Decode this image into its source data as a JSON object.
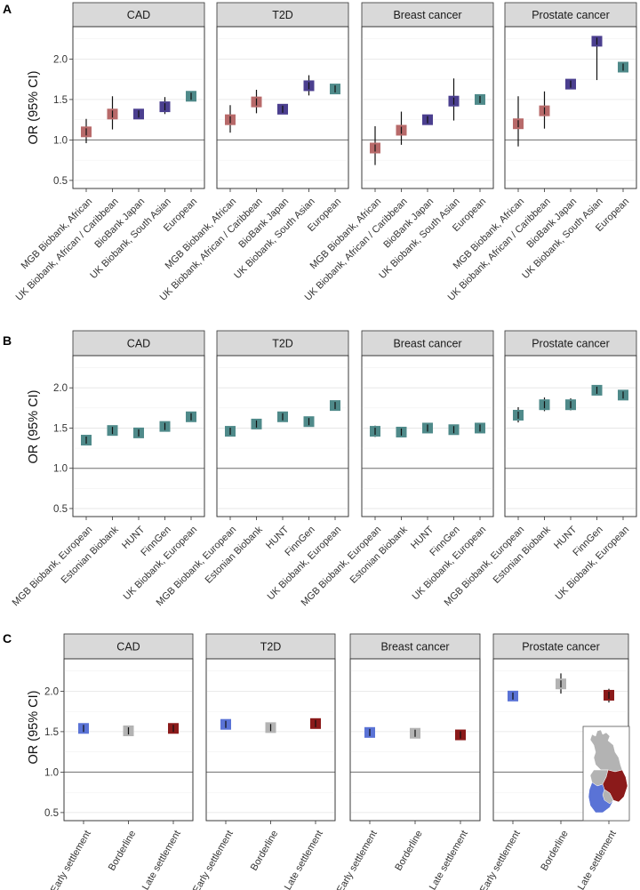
{
  "ylabel": "OR (95% CI)",
  "colors": {
    "african": "#b86a6a",
    "african_caribbean": "#b86a6a",
    "japan": "#4b3f8f",
    "south_asian": "#4b3f8f",
    "european": "#4f8a8a",
    "early": "#5a73d6",
    "borderline": "#b3b3b3",
    "late": "#8b1a1a"
  },
  "chart_data": [
    {
      "id": "A",
      "label": "A",
      "type": "scatter",
      "ylim": [
        0.4,
        2.4
      ],
      "yticks": [
        0.5,
        1.0,
        1.5,
        2.0
      ],
      "ytick_labels": [
        "0.5",
        "1.0",
        "1.5",
        "2.0"
      ],
      "reference_line": 1.0,
      "categories": [
        "MGB Biobank, African",
        "UK Biobank, African / Caribbean",
        "BioBank Japan",
        "UK Biobank, South Asian",
        "European"
      ],
      "point_colors": [
        "african",
        "african_caribbean",
        "japan",
        "south_asian",
        "european"
      ],
      "panels": [
        {
          "title": "CAD",
          "or": [
            1.1,
            1.32,
            1.32,
            1.41,
            1.54
          ],
          "lo": [
            0.96,
            1.13,
            1.28,
            1.32,
            1.51
          ],
          "hi": [
            1.26,
            1.54,
            1.36,
            1.53,
            1.57
          ]
        },
        {
          "title": "T2D",
          "or": [
            1.25,
            1.47,
            1.38,
            1.67,
            1.63
          ],
          "lo": [
            1.09,
            1.33,
            1.34,
            1.55,
            1.6
          ],
          "hi": [
            1.43,
            1.62,
            1.42,
            1.8,
            1.66
          ]
        },
        {
          "title": "Breast cancer",
          "or": [
            0.9,
            1.12,
            1.25,
            1.48,
            1.5
          ],
          "lo": [
            0.69,
            0.94,
            1.21,
            1.24,
            1.47
          ],
          "hi": [
            1.17,
            1.35,
            1.29,
            1.76,
            1.53
          ]
        },
        {
          "title": "Prostate cancer",
          "or": [
            1.2,
            1.36,
            1.69,
            2.22,
            1.9
          ],
          "lo": [
            0.92,
            1.14,
            1.64,
            1.74,
            1.86
          ],
          "hi": [
            1.54,
            1.6,
            1.74,
            2.28,
            1.94
          ]
        }
      ]
    },
    {
      "id": "B",
      "label": "B",
      "type": "scatter",
      "ylim": [
        0.4,
        2.4
      ],
      "yticks": [
        0.5,
        1.0,
        1.5,
        2.0
      ],
      "ytick_labels": [
        "0.5",
        "1.0",
        "1.5",
        "2.0"
      ],
      "reference_line": 1.0,
      "categories": [
        "MGB Biobank, European",
        "Estonian Biobank",
        "HUNT",
        "FinnGen",
        "UK Biobank, European"
      ],
      "point_colors": [
        "european",
        "european",
        "european",
        "european",
        "european"
      ],
      "panels": [
        {
          "title": "CAD",
          "or": [
            1.35,
            1.47,
            1.44,
            1.52,
            1.64
          ],
          "lo": [
            1.31,
            1.43,
            1.4,
            1.49,
            1.61
          ],
          "hi": [
            1.39,
            1.51,
            1.48,
            1.55,
            1.67
          ]
        },
        {
          "title": "T2D",
          "or": [
            1.46,
            1.55,
            1.64,
            1.58,
            1.78
          ],
          "lo": [
            1.42,
            1.51,
            1.6,
            1.55,
            1.75
          ],
          "hi": [
            1.5,
            1.59,
            1.68,
            1.61,
            1.81
          ]
        },
        {
          "title": "Breast cancer",
          "or": [
            1.46,
            1.45,
            1.5,
            1.48,
            1.5
          ],
          "lo": [
            1.39,
            1.39,
            1.45,
            1.45,
            1.47
          ],
          "hi": [
            1.53,
            1.51,
            1.56,
            1.51,
            1.53
          ]
        },
        {
          "title": "Prostate cancer",
          "or": [
            1.66,
            1.79,
            1.79,
            1.97,
            1.91
          ],
          "lo": [
            1.57,
            1.71,
            1.72,
            1.93,
            1.87
          ],
          "hi": [
            1.76,
            1.88,
            1.87,
            2.01,
            1.95
          ]
        }
      ]
    },
    {
      "id": "C",
      "label": "C",
      "type": "scatter",
      "ylim": [
        0.4,
        2.4
      ],
      "yticks": [
        0.5,
        1.0,
        1.5,
        2.0
      ],
      "ytick_labels": [
        "0.5",
        "1.0",
        "1.5",
        "2.0"
      ],
      "reference_line": 1.0,
      "categories": [
        "Early settlement",
        "Borderline",
        "Late settlement"
      ],
      "point_colors": [
        "early",
        "borderline",
        "late"
      ],
      "panels": [
        {
          "title": "CAD",
          "or": [
            1.54,
            1.51,
            1.54
          ],
          "lo": [
            1.5,
            1.46,
            1.5
          ],
          "hi": [
            1.58,
            1.56,
            1.58
          ]
        },
        {
          "title": "T2D",
          "or": [
            1.59,
            1.55,
            1.6
          ],
          "lo": [
            1.55,
            1.5,
            1.56
          ],
          "hi": [
            1.63,
            1.6,
            1.64
          ]
        },
        {
          "title": "Breast cancer",
          "or": [
            1.49,
            1.48,
            1.46
          ],
          "lo": [
            1.44,
            1.43,
            1.41
          ],
          "hi": [
            1.54,
            1.53,
            1.51
          ]
        },
        {
          "title": "Prostate cancer",
          "or": [
            1.94,
            2.09,
            1.95
          ],
          "lo": [
            1.88,
            1.97,
            1.86
          ],
          "hi": [
            2.0,
            2.22,
            2.03
          ]
        }
      ]
    }
  ]
}
